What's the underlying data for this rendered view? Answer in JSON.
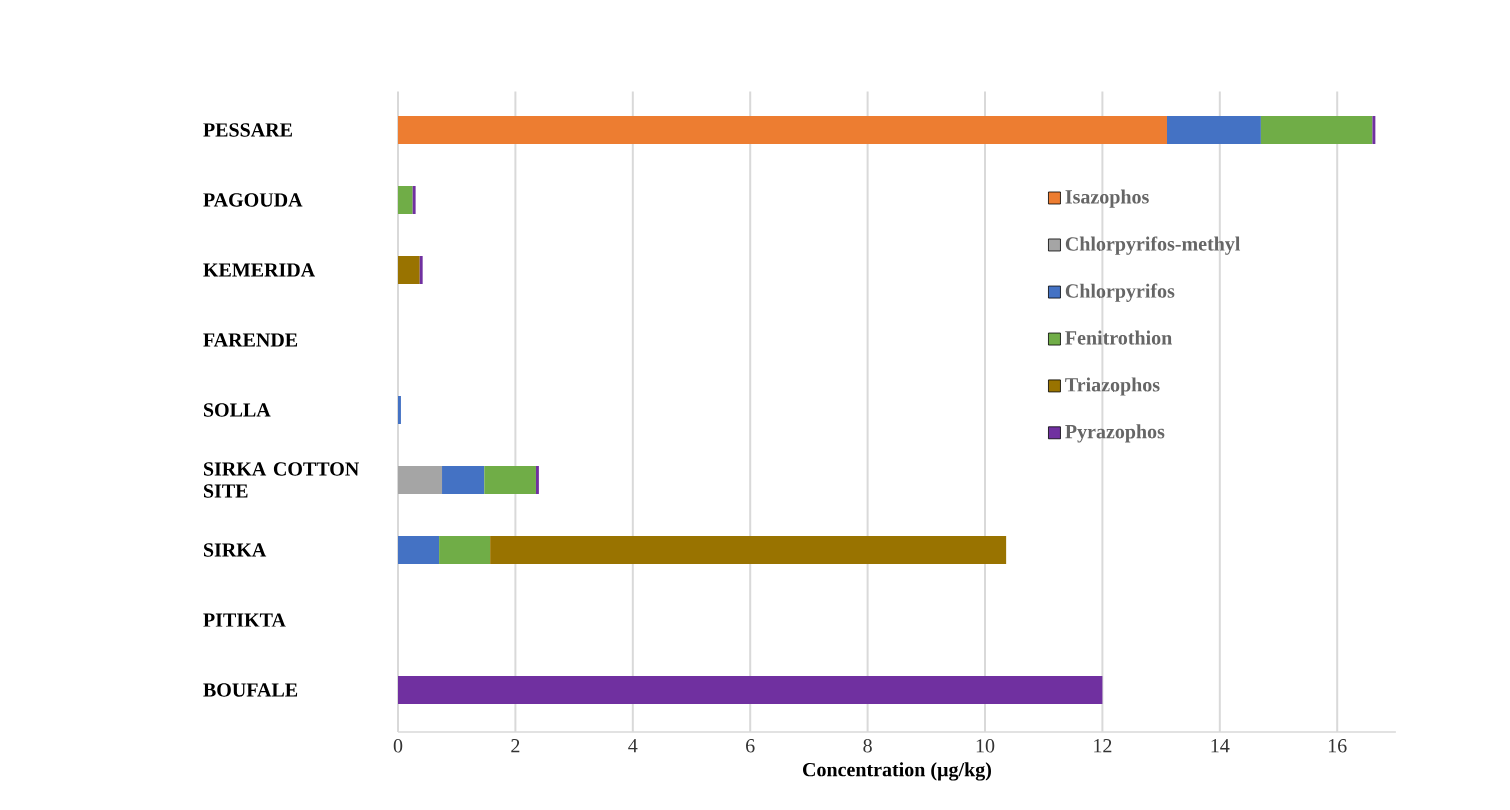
{
  "chart_data": {
    "type": "bar",
    "orientation": "horizontal",
    "stacked": true,
    "xlabel": "Concentration (µg/kg)",
    "categories": [
      "PESSARE",
      "PAGOUDA",
      "KEMERIDA",
      "FARENDE",
      "SOLLA",
      "SIRKA COTTON SITE",
      "SIRKA",
      "PITIKTA",
      "BOUFALE"
    ],
    "series": [
      {
        "name": "Isazophos",
        "color": "#ed7d31",
        "values": [
          13.1,
          null,
          null,
          null,
          null,
          null,
          null,
          null,
          null
        ]
      },
      {
        "name": "Chlorpyrifos-methyl",
        "color": "#a5a5a5",
        "values": [
          null,
          null,
          null,
          null,
          null,
          0.75,
          null,
          null,
          null
        ]
      },
      {
        "name": "Chlorpyrifos",
        "color": "#4472c4",
        "values": [
          1.6,
          null,
          null,
          null,
          0.05,
          0.72,
          0.7,
          null,
          null
        ]
      },
      {
        "name": "Fenitrothion",
        "color": "#70ad47",
        "values": [
          1.9,
          0.25,
          null,
          null,
          null,
          0.88,
          0.87,
          null,
          null
        ]
      },
      {
        "name": "Triazophos",
        "color": "#997300",
        "values": [
          null,
          null,
          0.37,
          null,
          null,
          null,
          8.79,
          null,
          null
        ]
      },
      {
        "name": "Pyrazophos",
        "color": "#7030a0",
        "values": [
          0.05,
          0.05,
          0.05,
          null,
          null,
          0.05,
          null,
          null,
          12.0
        ]
      }
    ],
    "xlim": [
      0,
      17
    ],
    "xticks": [
      0,
      2,
      4,
      6,
      8,
      10,
      12,
      14,
      16
    ],
    "grid": "x",
    "legend": "right"
  }
}
